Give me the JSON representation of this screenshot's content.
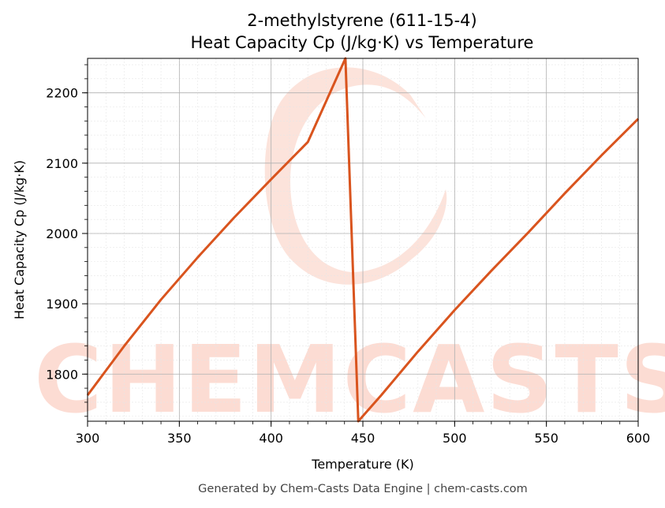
{
  "chart_data": {
    "type": "line",
    "title": "2-methylstyrene (611-15-4)",
    "subtitle": "Heat Capacity Cp (J/kg·K) vs Temperature",
    "xlabel": "Temperature (K)",
    "ylabel": "Heat Capacity Cp (J/kg·K)",
    "xlim": [
      300,
      600
    ],
    "ylim": [
      1733,
      2249
    ],
    "x_ticks": [
      300,
      350,
      400,
      450,
      500,
      550,
      600
    ],
    "y_ticks": [
      1800,
      1900,
      2000,
      2100,
      2200
    ],
    "grid": true,
    "series": [
      {
        "color": "#d9541e",
        "x": [
          300,
          320,
          340,
          360,
          380,
          400,
          420,
          440.5,
          447.5,
          460,
          480,
          500,
          520,
          540,
          560,
          580,
          600
        ],
        "y": [
          1770,
          1840,
          1906,
          1966,
          2023,
          2077,
          2130,
          2249,
          1733,
          1770,
          1832,
          1891,
          1947,
          2001,
          2057,
          2111,
          2163
        ]
      }
    ]
  },
  "watermark": "CHEMCASTS",
  "footer": "Generated by Chem-Casts Data Engine | chem-casts.com"
}
